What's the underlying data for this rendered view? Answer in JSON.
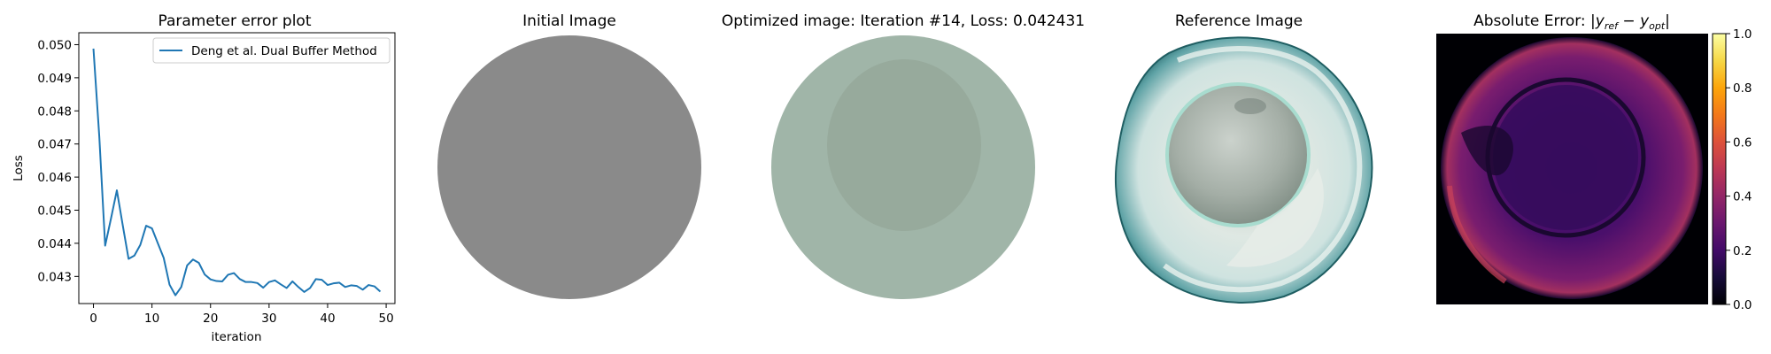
{
  "panels": {
    "initial_title": "Initial Image",
    "optimized_title": "Optimized image: Iteration #14, Loss: 0.042431",
    "reference_title": "Reference Image",
    "error_title_prefix": "Absolute Error: |",
    "error_title_ref": "y",
    "error_title_ref_sub": "ref",
    "error_title_minus": " − ",
    "error_title_opt": "y",
    "error_title_opt_sub": "opt",
    "error_title_suffix": "|",
    "initial_color": "#8a8a8a",
    "optimized_outer_color": "#a0b5a8",
    "optimized_inner_color": "#97aa9c"
  },
  "colorbar": {
    "ticks": [
      "0.0",
      "0.2",
      "0.4",
      "0.6",
      "0.8",
      "1.0"
    ],
    "colormap": "inferno"
  },
  "chart_data": {
    "type": "line",
    "title": "Parameter error plot",
    "xlabel": "iteration",
    "ylabel": "Loss",
    "xlim": [
      -2.5,
      51.5
    ],
    "ylim": [
      0.04218,
      0.05036
    ],
    "xticks": [
      "0",
      "10",
      "20",
      "30",
      "40",
      "50"
    ],
    "yticks": [
      "0.043",
      "0.044",
      "0.045",
      "0.046",
      "0.047",
      "0.048",
      "0.049",
      "0.050"
    ],
    "legend_position": "top-right",
    "grid": false,
    "series": [
      {
        "name": "Deng et al. Dual Buffer Method",
        "color": "#1f77b4",
        "x": [
          0,
          1,
          2,
          3,
          4,
          5,
          6,
          7,
          8,
          9,
          10,
          11,
          12,
          13,
          14,
          15,
          16,
          17,
          18,
          19,
          20,
          21,
          22,
          23,
          24,
          25,
          26,
          27,
          28,
          29,
          30,
          31,
          32,
          33,
          34,
          35,
          36,
          37,
          38,
          39,
          40,
          41,
          42,
          43,
          44,
          45,
          46,
          47,
          48,
          49
        ],
        "values": [
          0.04988,
          0.04722,
          0.04393,
          0.04475,
          0.0456,
          0.04455,
          0.04353,
          0.04363,
          0.04395,
          0.04453,
          0.04445,
          0.044,
          0.04356,
          0.04275,
          0.04243,
          0.04268,
          0.04333,
          0.04351,
          0.04341,
          0.04306,
          0.04291,
          0.04286,
          0.04285,
          0.04305,
          0.0431,
          0.04292,
          0.04283,
          0.04283,
          0.0428,
          0.04266,
          0.04283,
          0.04288,
          0.04276,
          0.04265,
          0.04285,
          0.04268,
          0.04253,
          0.04265,
          0.04292,
          0.0429,
          0.04274,
          0.04279,
          0.04281,
          0.04268,
          0.04273,
          0.04271,
          0.0426,
          0.04274,
          0.0427,
          0.04254
        ]
      }
    ]
  }
}
